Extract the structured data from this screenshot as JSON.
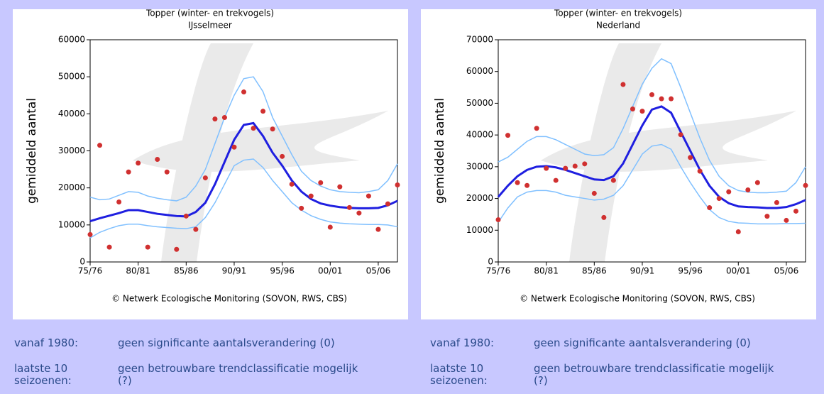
{
  "chart_data": [
    {
      "type": "line",
      "title": "Topper (winter- en trekvogels)",
      "subtitle": "IJsselmeer",
      "ylabel": "gemiddeld aantal",
      "source": "© Netwerk Ecologische Monitoring (SOVON, RWS, CBS)",
      "categories": [
        "75/76",
        null,
        null,
        null,
        null,
        "80/81",
        null,
        null,
        null,
        null,
        "85/86",
        null,
        null,
        null,
        null,
        "90/91",
        null,
        null,
        null,
        null,
        "95/96",
        null,
        null,
        null,
        null,
        "00/01",
        null,
        null,
        null,
        null,
        "05/06",
        null,
        null
      ],
      "ylim": [
        0,
        60000
      ],
      "yticks": [
        0,
        10000,
        20000,
        30000,
        40000,
        50000,
        60000
      ],
      "series": [
        {
          "mark": "line",
          "color": "#80c0ff",
          "values": [
            17500,
            16800,
            17000,
            18000,
            19000,
            18800,
            17800,
            17200,
            16800,
            16500,
            17500,
            20500,
            25000,
            32000,
            39000,
            45000,
            49500,
            50000,
            46000,
            39000,
            34000,
            29000,
            24500,
            22000,
            20500,
            19500,
            19000,
            18800,
            18700,
            19000,
            19500,
            22000,
            26500
          ]
        },
        {
          "mark": "line",
          "color": "#80c0ff",
          "values": [
            6500,
            8000,
            9000,
            9800,
            10200,
            10200,
            9800,
            9500,
            9300,
            9100,
            9000,
            9500,
            12000,
            16000,
            21000,
            26000,
            27500,
            27800,
            25500,
            22000,
            19000,
            16000,
            14000,
            12500,
            11500,
            10800,
            10500,
            10300,
            10200,
            10100,
            10100,
            10000,
            9500
          ]
        },
        {
          "mark": "line",
          "color": "#1f1fe0",
          "values": [
            11000,
            11800,
            12500,
            13200,
            14000,
            14000,
            13500,
            13000,
            12700,
            12400,
            12300,
            13500,
            16000,
            21000,
            27000,
            33000,
            37000,
            37500,
            34000,
            29500,
            26000,
            22000,
            19000,
            17000,
            15800,
            15200,
            14800,
            14600,
            14500,
            14500,
            14600,
            15300,
            16500
          ]
        },
        {
          "mark": "point",
          "color": "#d03030",
          "values": [
            7400,
            31500,
            4000,
            16200,
            24300,
            26700,
            4000,
            27700,
            24300,
            3400,
            12400,
            8800,
            22700,
            38600,
            39000,
            31000,
            45900,
            36100,
            40700,
            35900,
            28500,
            21000,
            14500,
            17800,
            21400,
            9400,
            20300,
            14700,
            13200,
            17800,
            8800,
            15700,
            20800
          ]
        }
      ]
    },
    {
      "type": "line",
      "title": "Topper (winter- en trekvogels)",
      "subtitle": "Nederland",
      "ylabel": "gemiddeld aantal",
      "source": "© Netwerk Ecologische Monitoring (SOVON, RWS, CBS)",
      "categories": [
        "75/76",
        null,
        null,
        null,
        null,
        "80/81",
        null,
        null,
        null,
        null,
        "85/86",
        null,
        null,
        null,
        null,
        "90/91",
        null,
        null,
        null,
        null,
        "95/96",
        null,
        null,
        null,
        null,
        "00/01",
        null,
        null,
        null,
        null,
        "05/06",
        null,
        null
      ],
      "ylim": [
        0,
        70000
      ],
      "yticks": [
        0,
        10000,
        20000,
        30000,
        40000,
        50000,
        60000,
        70000
      ],
      "series": [
        {
          "mark": "line",
          "color": "#80c0ff",
          "values": [
            31500,
            33000,
            35500,
            38000,
            39500,
            39500,
            38500,
            37000,
            35500,
            34000,
            33500,
            33800,
            36000,
            42000,
            49000,
            56000,
            61000,
            64000,
            62500,
            55000,
            47000,
            39000,
            32000,
            27000,
            24000,
            22500,
            22000,
            21800,
            21800,
            22000,
            22300,
            25000,
            30000
          ]
        },
        {
          "mark": "line",
          "color": "#80c0ff",
          "values": [
            12500,
            17000,
            20500,
            22000,
            22500,
            22500,
            22000,
            21000,
            20500,
            20000,
            19500,
            19800,
            21000,
            24000,
            29000,
            34000,
            36500,
            37000,
            35500,
            30000,
            25000,
            20500,
            16500,
            14000,
            12800,
            12300,
            12200,
            12000,
            12000,
            12000,
            12100,
            12100,
            12200
          ]
        },
        {
          "mark": "line",
          "color": "#1f1fe0",
          "values": [
            20500,
            24000,
            27000,
            29000,
            30000,
            30200,
            29800,
            29000,
            28000,
            27000,
            26000,
            25800,
            27000,
            31000,
            37000,
            43000,
            48000,
            49000,
            47000,
            41000,
            35000,
            29000,
            24000,
            20500,
            18500,
            17500,
            17300,
            17200,
            17000,
            17000,
            17300,
            18200,
            19500
          ]
        },
        {
          "mark": "point",
          "color": "#d03030",
          "values": [
            13300,
            39900,
            25000,
            24100,
            42100,
            29500,
            25700,
            29500,
            30200,
            30900,
            21600,
            14000,
            25700,
            55900,
            48200,
            47500,
            52700,
            51400,
            51400,
            40100,
            32900,
            28600,
            17100,
            20000,
            22100,
            9500,
            22700,
            25000,
            14400,
            18700,
            13100,
            16000,
            24100
          ]
        }
      ]
    }
  ],
  "summaries": [
    {
      "rows": [
        {
          "label": "vanaf 1980:",
          "text": "geen significante aantalsverandering (0)"
        },
        {
          "label": "laatste 10 seizoenen:",
          "text": "geen betrouwbare trendclassificatie mogelijk (?)"
        }
      ]
    },
    {
      "rows": [
        {
          "label": "vanaf 1980:",
          "text": "geen significante aantalsverandering (0)"
        },
        {
          "label": "laatste 10 seizoenen:",
          "text": "geen betrouwbare trendclassificatie mogelijk (?)"
        }
      ]
    }
  ]
}
